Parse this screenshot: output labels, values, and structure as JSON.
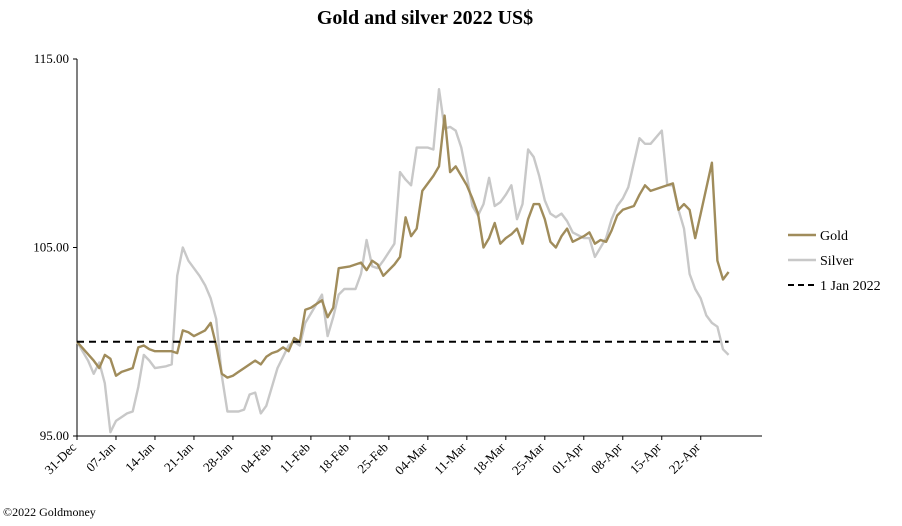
{
  "chart_data": {
    "type": "line",
    "title": "Gold and silver 2022  US$",
    "xlabel": "",
    "ylabel": "",
    "ylim": [
      95,
      115
    ],
    "yticks": [
      95,
      105,
      115
    ],
    "ytick_labels": [
      "95.00",
      "105.00",
      "115.00"
    ],
    "xticks": [
      {
        "day": 0,
        "label": "31-Dec"
      },
      {
        "day": 7,
        "label": "07-Jan"
      },
      {
        "day": 14,
        "label": "14-Jan"
      },
      {
        "day": 21,
        "label": "21-Jan"
      },
      {
        "day": 28,
        "label": "28-Jan"
      },
      {
        "day": 35,
        "label": "04-Feb"
      },
      {
        "day": 42,
        "label": "11-Feb"
      },
      {
        "day": 49,
        "label": "18-Feb"
      },
      {
        "day": 56,
        "label": "25-Feb"
      },
      {
        "day": 63,
        "label": "04-Mar"
      },
      {
        "day": 70,
        "label": "11-Mar"
      },
      {
        "day": 77,
        "label": "18-Mar"
      },
      {
        "day": 84,
        "label": "25-Mar"
      },
      {
        "day": 91,
        "label": "01-Apr"
      },
      {
        "day": 98,
        "label": "08-Apr"
      },
      {
        "day": 105,
        "label": "15-Apr"
      },
      {
        "day": 112,
        "label": "22-Apr"
      }
    ],
    "xlim": [
      0,
      123
    ],
    "legend_position": "right",
    "grid": false,
    "series": [
      {
        "name": "Gold",
        "color": "#a08c5b",
        "style": "solid",
        "points": [
          [
            0,
            100
          ],
          [
            3,
            99
          ],
          [
            4,
            98.6
          ],
          [
            5,
            99.3
          ],
          [
            6,
            99.1
          ],
          [
            7,
            98.2
          ],
          [
            8,
            98.4
          ],
          [
            10,
            98.6
          ],
          [
            11,
            99.7
          ],
          [
            12,
            99.8
          ],
          [
            13,
            99.6
          ],
          [
            14,
            99.5
          ],
          [
            15,
            99.5
          ],
          [
            17,
            99.5
          ],
          [
            18,
            99.4
          ],
          [
            19,
            100.6
          ],
          [
            20,
            100.5
          ],
          [
            21,
            100.3
          ],
          [
            23,
            100.6
          ],
          [
            24,
            101.0
          ],
          [
            25,
            99.8
          ],
          [
            26,
            98.3
          ],
          [
            27,
            98.1
          ],
          [
            28,
            98.2
          ],
          [
            29,
            98.4
          ],
          [
            30,
            98.6
          ],
          [
            31,
            98.8
          ],
          [
            32,
            99.0
          ],
          [
            33,
            98.8
          ],
          [
            34,
            99.2
          ],
          [
            35,
            99.4
          ],
          [
            36,
            99.5
          ],
          [
            37,
            99.7
          ],
          [
            38,
            99.5
          ],
          [
            39,
            100.2
          ],
          [
            40,
            100.0
          ],
          [
            41,
            101.7
          ],
          [
            42,
            101.8
          ],
          [
            44,
            102.2
          ],
          [
            45,
            101.3
          ],
          [
            46,
            101.8
          ],
          [
            47,
            103.9
          ],
          [
            49,
            104.0
          ],
          [
            51,
            104.2
          ],
          [
            52,
            103.8
          ],
          [
            53,
            104.3
          ],
          [
            54,
            104.1
          ],
          [
            55,
            103.5
          ],
          [
            57,
            104.1
          ],
          [
            58,
            104.5
          ],
          [
            59,
            106.6
          ],
          [
            60,
            105.6
          ],
          [
            61,
            106.0
          ],
          [
            62,
            108.0
          ],
          [
            64,
            108.8
          ],
          [
            65,
            109.3
          ],
          [
            66,
            112.0
          ],
          [
            67,
            109.0
          ],
          [
            68,
            109.3
          ],
          [
            69,
            108.8
          ],
          [
            70,
            108.3
          ],
          [
            71,
            107.6
          ],
          [
            72,
            106.8
          ],
          [
            73,
            105.0
          ],
          [
            74,
            105.5
          ],
          [
            75,
            106.3
          ],
          [
            76,
            105.2
          ],
          [
            77,
            105.5
          ],
          [
            78,
            105.7
          ],
          [
            79,
            106.0
          ],
          [
            80,
            105.2
          ],
          [
            81,
            106.5
          ],
          [
            82,
            107.3
          ],
          [
            83,
            107.3
          ],
          [
            84,
            106.5
          ],
          [
            85,
            105.3
          ],
          [
            86,
            105.0
          ],
          [
            87,
            105.6
          ],
          [
            88,
            106.0
          ],
          [
            89,
            105.3
          ],
          [
            91,
            105.6
          ],
          [
            92,
            105.8
          ],
          [
            93,
            105.2
          ],
          [
            94,
            105.4
          ],
          [
            95,
            105.3
          ],
          [
            96,
            105.9
          ],
          [
            97,
            106.7
          ],
          [
            98,
            107.0
          ],
          [
            100,
            107.2
          ],
          [
            101,
            107.8
          ],
          [
            102,
            108.3
          ],
          [
            103,
            108.0
          ],
          [
            107,
            108.4
          ],
          [
            108,
            107.0
          ],
          [
            109,
            107.3
          ],
          [
            110,
            107.0
          ],
          [
            111,
            105.5
          ],
          [
            112,
            106.8
          ],
          [
            114,
            109.5
          ],
          [
            115,
            104.3
          ],
          [
            116,
            103.3
          ],
          [
            117,
            103.7
          ]
        ]
      },
      {
        "name": "Silver",
        "color": "#c8c8c8",
        "style": "solid",
        "points": [
          [
            0,
            100
          ],
          [
            2,
            99.0
          ],
          [
            3,
            98.3
          ],
          [
            4,
            98.9
          ],
          [
            5,
            97.8
          ],
          [
            6,
            95.2
          ],
          [
            7,
            95.8
          ],
          [
            9,
            96.2
          ],
          [
            10,
            96.3
          ],
          [
            11,
            97.6
          ],
          [
            12,
            99.3
          ],
          [
            13,
            99.0
          ],
          [
            14,
            98.6
          ],
          [
            16,
            98.7
          ],
          [
            17,
            98.8
          ],
          [
            18,
            103.5
          ],
          [
            19,
            105.0
          ],
          [
            20,
            104.3
          ],
          [
            22,
            103.5
          ],
          [
            23,
            103.0
          ],
          [
            24,
            102.3
          ],
          [
            25,
            101.2
          ],
          [
            26,
            98.2
          ],
          [
            27,
            96.3
          ],
          [
            29,
            96.3
          ],
          [
            30,
            96.4
          ],
          [
            31,
            97.2
          ],
          [
            32,
            97.3
          ],
          [
            33,
            96.2
          ],
          [
            34,
            96.6
          ],
          [
            36,
            98.6
          ],
          [
            37,
            99.2
          ],
          [
            38,
            99.8
          ],
          [
            39,
            100.0
          ],
          [
            40,
            99.8
          ],
          [
            41,
            101.0
          ],
          [
            42,
            101.5
          ],
          [
            44,
            102.5
          ],
          [
            45,
            100.3
          ],
          [
            46,
            101.3
          ],
          [
            47,
            102.5
          ],
          [
            48,
            102.8
          ],
          [
            49,
            102.8
          ],
          [
            50,
            102.8
          ],
          [
            51,
            103.6
          ],
          [
            52,
            105.4
          ],
          [
            53,
            104.0
          ],
          [
            54,
            103.9
          ],
          [
            55,
            104.3
          ],
          [
            57,
            105.2
          ],
          [
            58,
            109.0
          ],
          [
            59,
            108.6
          ],
          [
            60,
            108.3
          ],
          [
            61,
            110.3
          ],
          [
            63,
            110.3
          ],
          [
            64,
            110.2
          ],
          [
            65,
            113.4
          ],
          [
            66,
            111.3
          ],
          [
            67,
            111.4
          ],
          [
            68,
            111.2
          ],
          [
            69,
            110.3
          ],
          [
            70,
            108.8
          ],
          [
            71,
            107.2
          ],
          [
            72,
            106.7
          ],
          [
            73,
            107.3
          ],
          [
            74,
            108.7
          ],
          [
            75,
            107.2
          ],
          [
            76,
            107.4
          ],
          [
            77,
            107.8
          ],
          [
            78,
            108.3
          ],
          [
            79,
            106.5
          ],
          [
            80,
            107.3
          ],
          [
            81,
            110.2
          ],
          [
            82,
            109.8
          ],
          [
            83,
            108.8
          ],
          [
            84,
            107.5
          ],
          [
            85,
            106.8
          ],
          [
            86,
            106.6
          ],
          [
            87,
            106.8
          ],
          [
            88,
            106.4
          ],
          [
            89,
            105.8
          ],
          [
            91,
            105.5
          ],
          [
            92,
            105.5
          ],
          [
            93,
            104.5
          ],
          [
            94,
            105.0
          ],
          [
            95,
            105.5
          ],
          [
            96,
            106.5
          ],
          [
            97,
            107.2
          ],
          [
            98,
            107.6
          ],
          [
            99,
            108.2
          ],
          [
            100,
            109.5
          ],
          [
            101,
            110.8
          ],
          [
            102,
            110.5
          ],
          [
            103,
            110.5
          ],
          [
            105,
            111.2
          ],
          [
            106,
            108.3
          ],
          [
            107,
            108.3
          ],
          [
            108,
            107.0
          ],
          [
            109,
            106.0
          ],
          [
            110,
            103.6
          ],
          [
            111,
            102.8
          ],
          [
            112,
            102.3
          ],
          [
            113,
            101.4
          ],
          [
            114,
            101.0
          ],
          [
            115,
            100.8
          ],
          [
            116,
            99.6
          ],
          [
            117,
            99.3
          ]
        ]
      },
      {
        "name": "1 Jan 2022",
        "color": "#000000",
        "style": "dashed",
        "points": [
          [
            0,
            100
          ],
          [
            117,
            100
          ]
        ]
      }
    ]
  },
  "footer": {
    "copyright": "©2022 Goldmoney"
  }
}
